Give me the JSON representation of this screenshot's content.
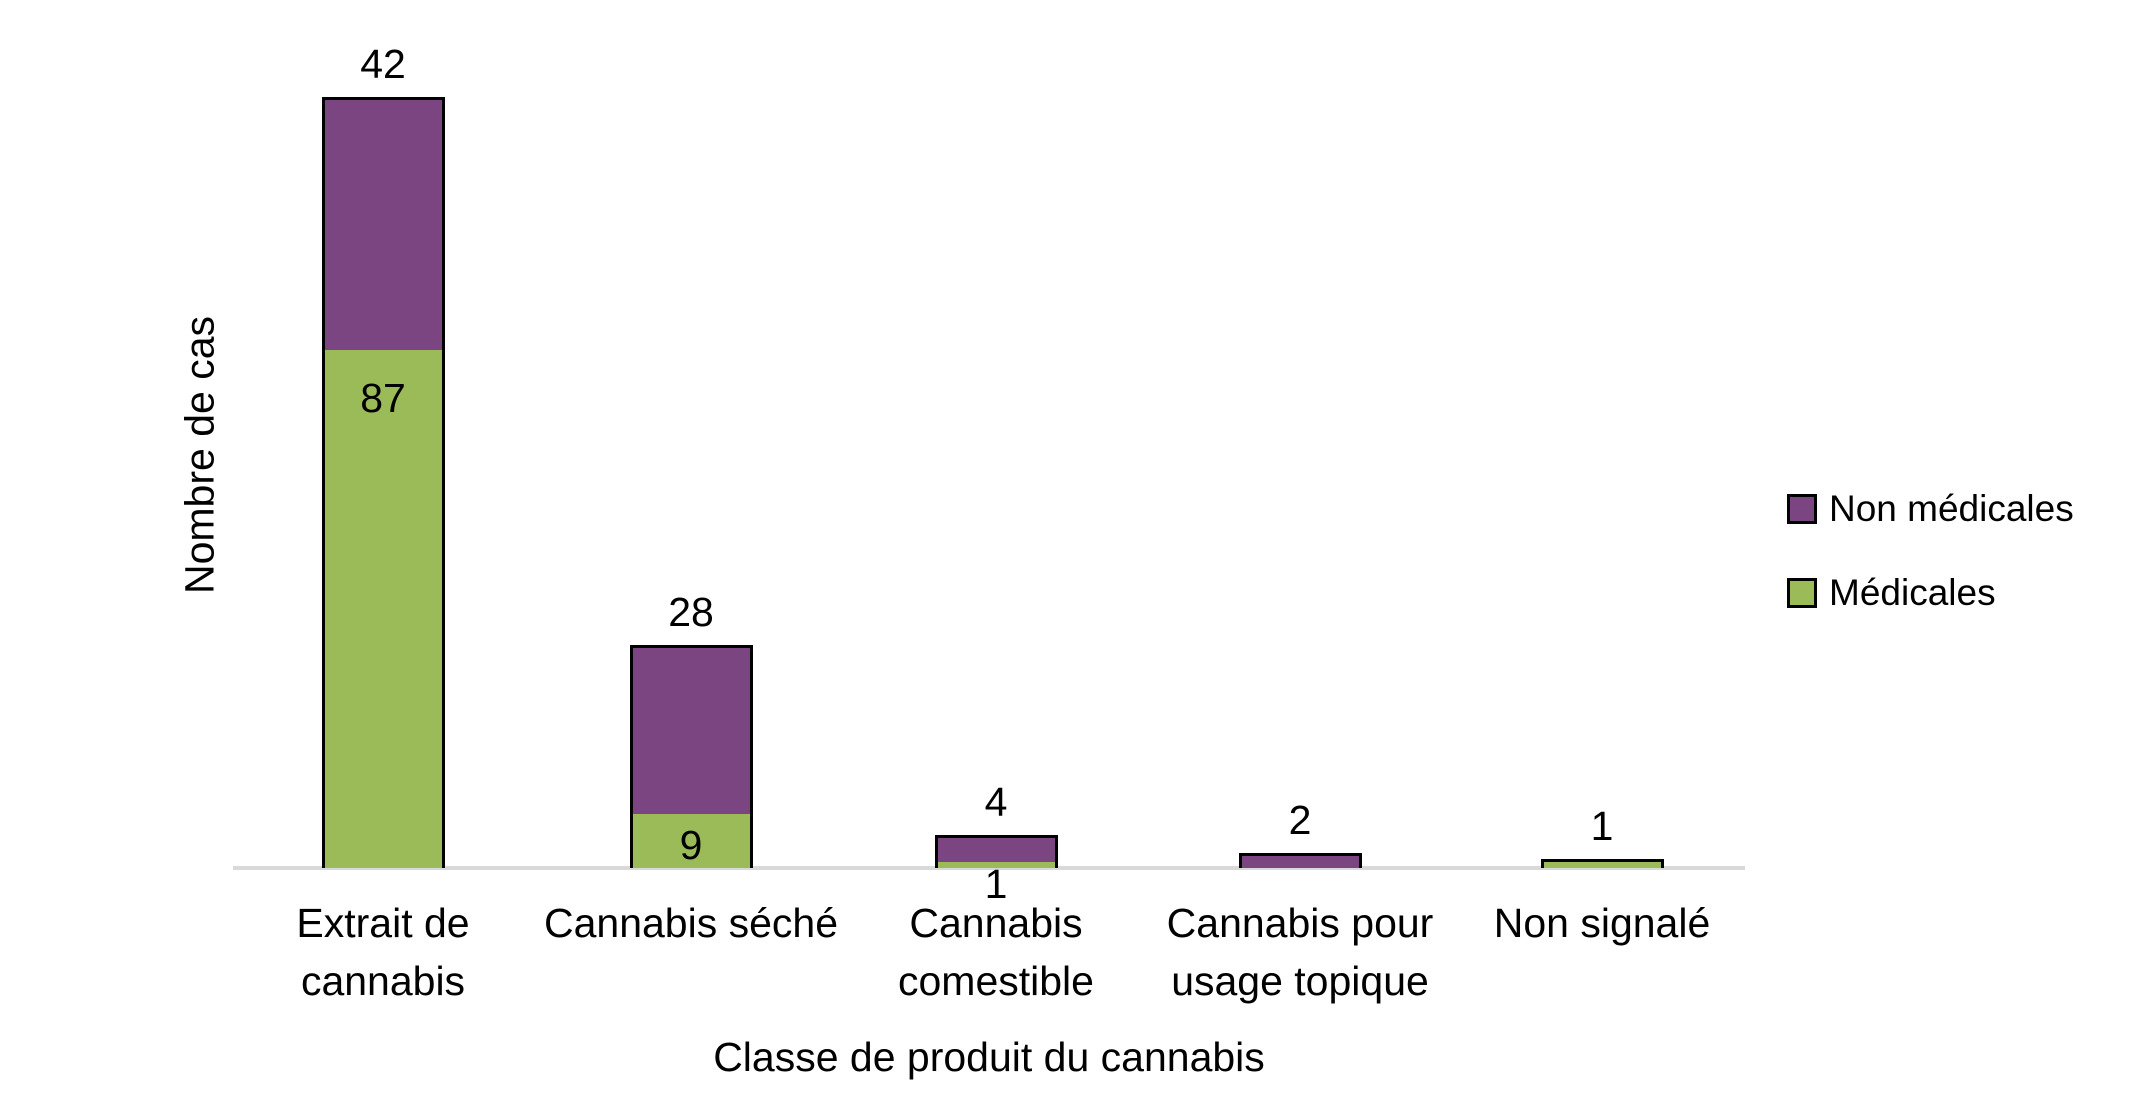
{
  "chart_data": {
    "type": "bar",
    "stacked": true,
    "title": "",
    "xlabel": "Classe de produit du cannabis",
    "ylabel": "Nombre de cas",
    "categories": [
      "Extrait de\ncannabis",
      "Cannabis séché",
      "Cannabis\ncomestible",
      "Cannabis pour\nusage topique",
      "Non signalé"
    ],
    "series": [
      {
        "name": "Non médicales",
        "color": "#7a4580",
        "values": [
          42,
          28,
          4,
          2,
          0
        ]
      },
      {
        "name": "Médicales",
        "color": "#9bbb59",
        "values": [
          87,
          9,
          1,
          0,
          1
        ]
      }
    ],
    "segment_labels": {
      "non_medicales": [
        "42",
        "28",
        "4",
        "2",
        ""
      ],
      "medicales": [
        "87",
        "9",
        "1",
        "",
        "1"
      ]
    },
    "legend_position": "right",
    "grid": false,
    "y_axis_ticks_visible": false,
    "axis_line_color": "#d9d9d9",
    "bar_border_color": "#000000",
    "text_color": "#000000"
  }
}
